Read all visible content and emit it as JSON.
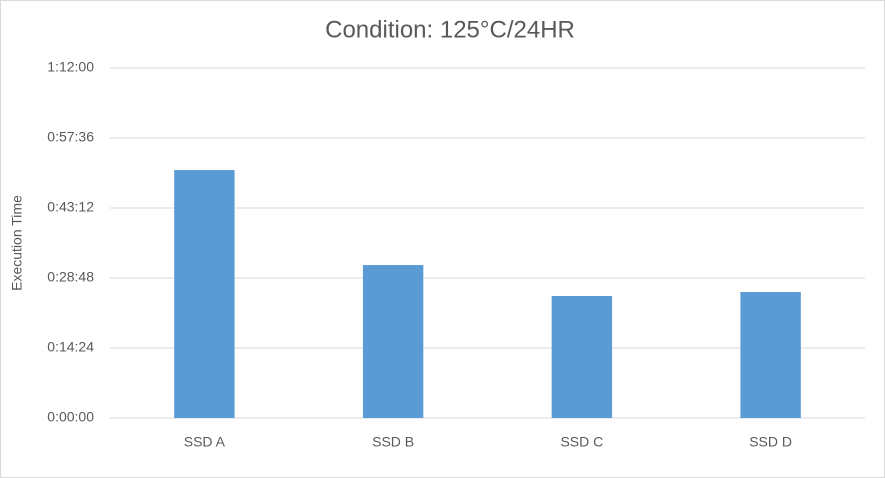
{
  "chart_data": {
    "type": "bar",
    "title": "Condition: 125°C/24HR",
    "y_label": "Execution Time",
    "categories": [
      "SSD A",
      "SSD B",
      "SSD C",
      "SSD D"
    ],
    "values": [
      3060,
      1888,
      1506,
      1555
    ],
    "color": "#5b9bd5",
    "ylim": [
      0,
      4320
    ],
    "yticks": [
      {
        "value": 0,
        "label": "0:00:00"
      },
      {
        "value": 864,
        "label": "0:14:24"
      },
      {
        "value": 1728,
        "label": "0:28:48"
      },
      {
        "value": 2592,
        "label": "0:43:12"
      },
      {
        "value": 3456,
        "label": "0:57:36"
      },
      {
        "value": 4320,
        "label": "1:12:00"
      }
    ],
    "grid": true
  }
}
